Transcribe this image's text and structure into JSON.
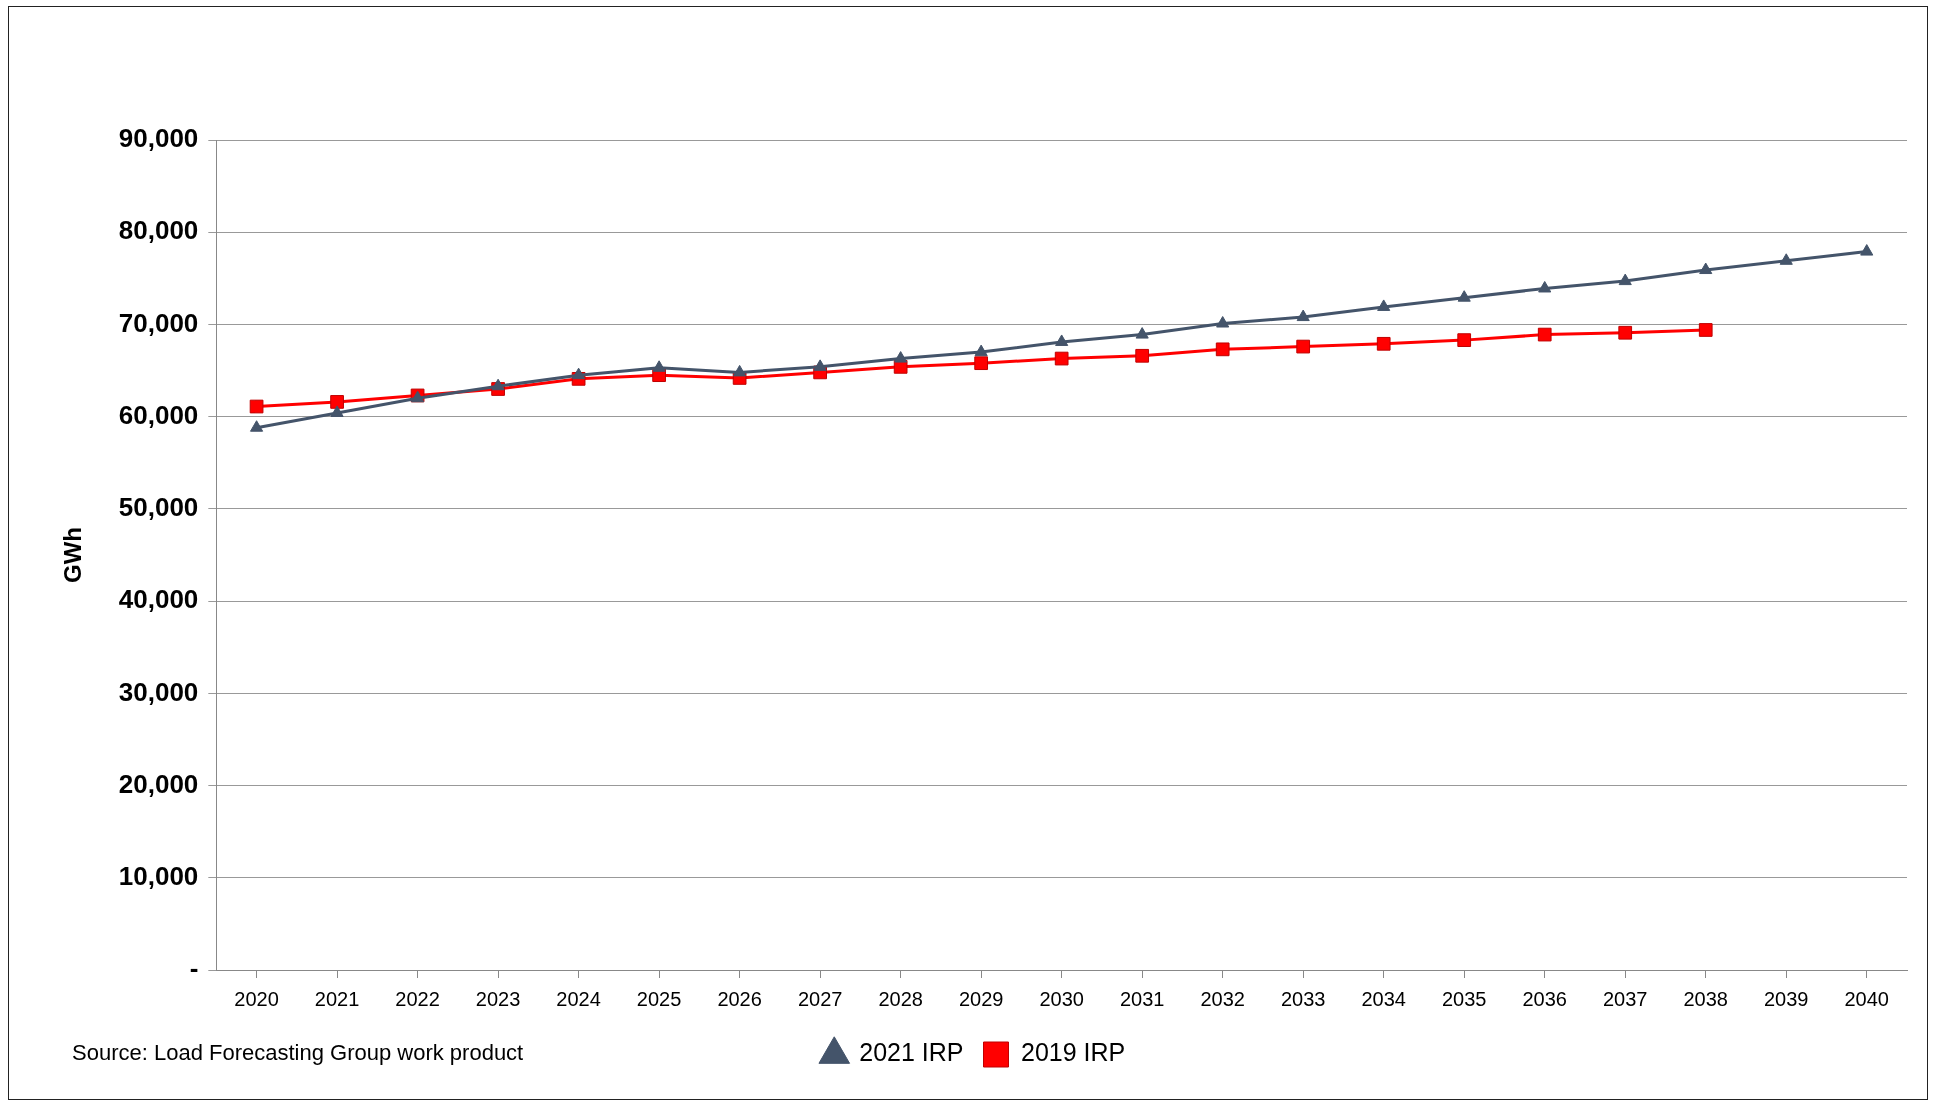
{
  "chart_data": {
    "type": "line",
    "ylabel": "GWh",
    "categories": [
      "2020",
      "2021",
      "2022",
      "2023",
      "2024",
      "2025",
      "2026",
      "2027",
      "2028",
      "2029",
      "2030",
      "2031",
      "2032",
      "2033",
      "2034",
      "2035",
      "2036",
      "2037",
      "2038",
      "2039",
      "2040"
    ],
    "series": [
      {
        "name": "2019 IRP",
        "color": "#ff0000",
        "marker": "square",
        "values": [
          61100,
          61600,
          62300,
          63000,
          64100,
          64500,
          64200,
          64800,
          65400,
          65800,
          66300,
          66600,
          67300,
          67600,
          67900,
          68300,
          68900,
          69100,
          69400,
          null,
          null
        ]
      },
      {
        "name": "2021 IRP",
        "color": "#44546a",
        "marker": "triangle",
        "values": [
          58800,
          60400,
          62000,
          63300,
          64500,
          65300,
          64800,
          65400,
          66300,
          67000,
          68100,
          68900,
          70100,
          70800,
          71900,
          72900,
          73900,
          74700,
          75900,
          76900,
          77900
        ]
      }
    ],
    "ylim": [
      0,
      90000
    ],
    "yticks": [
      {
        "value": 0,
        "label": "-"
      },
      {
        "value": 10000,
        "label": "10,000"
      },
      {
        "value": 20000,
        "label": "20,000"
      },
      {
        "value": 30000,
        "label": "30,000"
      },
      {
        "value": 40000,
        "label": "40,000"
      },
      {
        "value": 50000,
        "label": "50,000"
      },
      {
        "value": 60000,
        "label": "60,000"
      },
      {
        "value": 70000,
        "label": "70,000"
      },
      {
        "value": 80000,
        "label": "80,000"
      },
      {
        "value": 90000,
        "label": "90,000"
      }
    ],
    "grid": "y",
    "legend": "bottom",
    "line_style": "solid",
    "annotations": [
      "Source: Load Forecasting Group work product"
    ]
  }
}
